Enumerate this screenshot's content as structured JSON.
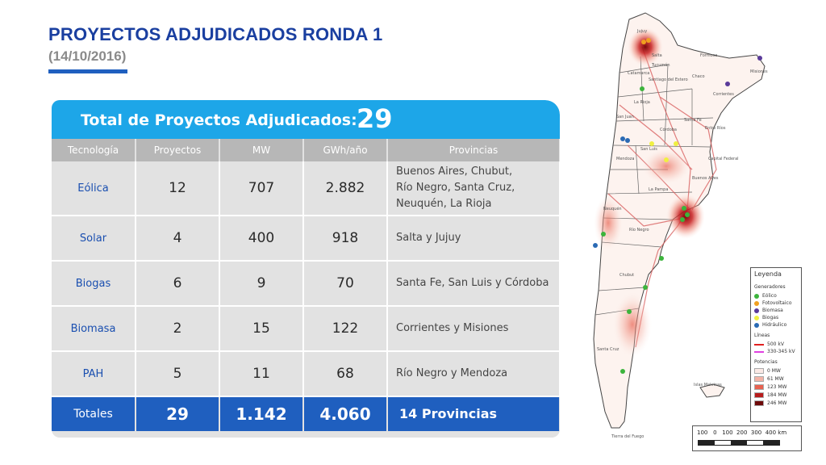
{
  "header": {
    "title": "PROYECTOS ADJUDICADOS RONDA 1",
    "date": "(14/10/2016)"
  },
  "card": {
    "label": "Total de Proyectos Adjudicados:",
    "count": "29"
  },
  "table": {
    "columns": [
      "Tecnología",
      "Proyectos",
      "MW",
      "GWh/año",
      "Provincias"
    ],
    "rows": [
      {
        "tech": "Eólica",
        "proyectos": "12",
        "mw": "707",
        "gwh": "2.882",
        "provincias": [
          "Buenos Aires, Chubut,",
          "Río Negro, Santa Cruz,",
          "Neuquén, La Rioja"
        ]
      },
      {
        "tech": "Solar",
        "proyectos": "4",
        "mw": "400",
        "gwh": "918",
        "provincias": [
          "Salta y Jujuy"
        ]
      },
      {
        "tech": "Biogas",
        "proyectos": "6",
        "mw": "9",
        "gwh": "70",
        "provincias": [
          "Santa Fe, San Luis y Córdoba"
        ]
      },
      {
        "tech": "Biomasa",
        "proyectos": "2",
        "mw": "15",
        "gwh": "122",
        "provincias": [
          "Corrientes y Misiones"
        ]
      },
      {
        "tech": "PAH",
        "proyectos": "5",
        "mw": "11",
        "gwh": "68",
        "provincias": [
          "Río Negro y Mendoza"
        ]
      }
    ],
    "totals": {
      "label": "Totales",
      "proyectos": "29",
      "mw": "1.142",
      "gwh": "4.060",
      "provincias": "14 Provincias"
    }
  },
  "map": {
    "place_labels": [
      "Jujuy",
      "Salta",
      "Formosa",
      "Misiones",
      "Chaco",
      "Catamarca",
      "Tucumán",
      "Santiago del Estero",
      "La Rioja",
      "Corrientes",
      "San Juan",
      "Santa Fe",
      "Entre Ríos",
      "Córdoba",
      "San Luis",
      "Mendoza",
      "Capital Federal",
      "Buenos Aires",
      "La Pampa",
      "Neuquén",
      "Río Negro",
      "Chubut",
      "Santa Cruz",
      "Islas Malvinas",
      "Tierra del Fuego"
    ],
    "legend": {
      "title": "Leyenda",
      "generadores_title": "Generadores",
      "generadores": [
        {
          "label": "Eólico",
          "color": "#3cb43c"
        },
        {
          "label": "Fotovoltaico",
          "color": "#f0a020"
        },
        {
          "label": "Biomasa",
          "color": "#5a3a9a"
        },
        {
          "label": "Biogas",
          "color": "#f0f040"
        },
        {
          "label": "Hidráulico",
          "color": "#2a6ab4"
        }
      ],
      "lineas_title": "Líneas",
      "lineas": [
        {
          "label": "500 kV",
          "color": "#e02020"
        },
        {
          "label": "330-345 kV",
          "color": "#e040e0"
        }
      ],
      "potencias_title": "Potencias",
      "potencias": [
        {
          "label": "0 MW",
          "color": "#fbeae6"
        },
        {
          "label": "61 MW",
          "color": "#f4b3a6"
        },
        {
          "label": "123 MW",
          "color": "#e8614f"
        },
        {
          "label": "184 MW",
          "color": "#b81c1c"
        },
        {
          "label": "246 MW",
          "color": "#6e0a0a"
        }
      ]
    },
    "scale": [
      "100",
      "0",
      "100",
      "200",
      "300",
      "400 km"
    ]
  }
}
